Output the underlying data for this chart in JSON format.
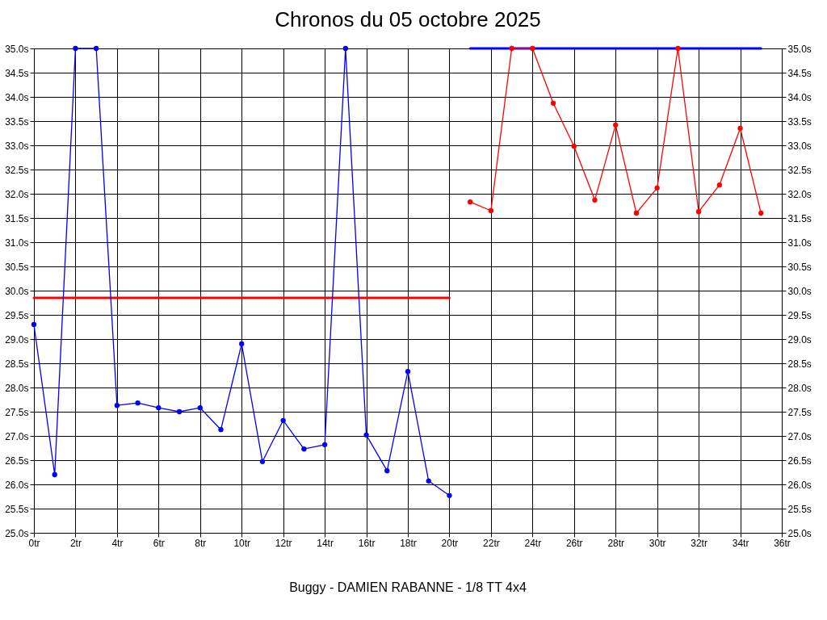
{
  "chart_data": {
    "type": "line",
    "title": "Chronos du 05 octobre 2025",
    "annotations": [
      "Buggy - DAMIEN RABANNE - 1/8 TT 4x4"
    ],
    "xlim": [
      0,
      36
    ],
    "xticks": [
      {
        "value": 0,
        "label": "0tr"
      },
      {
        "value": 2,
        "label": "2tr"
      },
      {
        "value": 4,
        "label": "4tr"
      },
      {
        "value": 6,
        "label": "6tr"
      },
      {
        "value": 8,
        "label": "8tr"
      },
      {
        "value": 10,
        "label": "10tr"
      },
      {
        "value": 12,
        "label": "12tr"
      },
      {
        "value": 14,
        "label": "14tr"
      },
      {
        "value": 16,
        "label": "16tr"
      },
      {
        "value": 18,
        "label": "18tr"
      },
      {
        "value": 20,
        "label": "20tr"
      },
      {
        "value": 22,
        "label": "22tr"
      },
      {
        "value": 24,
        "label": "24tr"
      },
      {
        "value": 26,
        "label": "26tr"
      },
      {
        "value": 28,
        "label": "28tr"
      },
      {
        "value": 30,
        "label": "30tr"
      },
      {
        "value": 32,
        "label": "32tr"
      },
      {
        "value": 34,
        "label": "34tr"
      },
      {
        "value": 36,
        "label": "36tr"
      }
    ],
    "ylim": [
      25,
      35
    ],
    "yticks": [
      {
        "value": 25,
        "label": "25.0s"
      },
      {
        "value": 25.5,
        "label": "25.5s"
      },
      {
        "value": 26,
        "label": "26.0s"
      },
      {
        "value": 26.5,
        "label": "26.5s"
      },
      {
        "value": 27,
        "label": "27.0s"
      },
      {
        "value": 27.5,
        "label": "27.5s"
      },
      {
        "value": 28,
        "label": "28.0s"
      },
      {
        "value": 28.5,
        "label": "28.5s"
      },
      {
        "value": 29,
        "label": "29.0s"
      },
      {
        "value": 29.5,
        "label": "29.5s"
      },
      {
        "value": 30,
        "label": "30.0s"
      },
      {
        "value": 30.5,
        "label": "30.5s"
      },
      {
        "value": 31,
        "label": "31.0s"
      },
      {
        "value": 31.5,
        "label": "31.5s"
      },
      {
        "value": 32,
        "label": "32.0s"
      },
      {
        "value": 32.5,
        "label": "32.5s"
      },
      {
        "value": 33,
        "label": "33.0s"
      },
      {
        "value": 33.5,
        "label": "33.5s"
      },
      {
        "value": 34,
        "label": "34.0s"
      },
      {
        "value": 34.5,
        "label": "34.5s"
      },
      {
        "value": 35,
        "label": "35.0s"
      }
    ],
    "y2lim": [
      25,
      35
    ],
    "y2ticks": [
      {
        "value": 25,
        "label": "25.0s"
      },
      {
        "value": 25.5,
        "label": "25.5s"
      },
      {
        "value": 26,
        "label": "26.0s"
      },
      {
        "value": 26.5,
        "label": "26.5s"
      },
      {
        "value": 27,
        "label": "27.0s"
      },
      {
        "value": 27.5,
        "label": "27.5s"
      },
      {
        "value": 28,
        "label": "28.0s"
      },
      {
        "value": 28.5,
        "label": "28.5s"
      },
      {
        "value": 29,
        "label": "29.0s"
      },
      {
        "value": 29.5,
        "label": "29.5s"
      },
      {
        "value": 30,
        "label": "30.0s"
      },
      {
        "value": 30.5,
        "label": "30.5s"
      },
      {
        "value": 31,
        "label": "31.0s"
      },
      {
        "value": 31.5,
        "label": "31.5s"
      },
      {
        "value": 32,
        "label": "32.0s"
      },
      {
        "value": 32.5,
        "label": "32.5s"
      },
      {
        "value": 33,
        "label": "33.0s"
      },
      {
        "value": 33.5,
        "label": "33.5s"
      },
      {
        "value": 34,
        "label": "34.0s"
      },
      {
        "value": 34.5,
        "label": "34.5s"
      },
      {
        "value": 35,
        "label": "35.0s"
      }
    ],
    "grid": true,
    "marker": "circle",
    "line_style": "solid",
    "series": [
      {
        "color": "#ff0000",
        "marker": "none",
        "x": [
          0,
          20
        ],
        "values": [
          29.85,
          29.85
        ]
      },
      {
        "color": "#0000ff",
        "marker": "none",
        "x": [
          21,
          35
        ],
        "values": [
          35.0,
          35.0
        ]
      },
      {
        "color": "#0000ff",
        "x": [
          0,
          1,
          2,
          3,
          4,
          5,
          6,
          7,
          8,
          9,
          10,
          11,
          12,
          13,
          14,
          15,
          16,
          17,
          18,
          19,
          20
        ],
        "values": [
          29.3,
          26.2,
          35.0,
          35.0,
          27.63,
          27.68,
          27.58,
          27.5,
          27.58,
          27.13,
          28.9,
          26.47,
          27.32,
          26.73,
          26.82,
          35.0,
          27.02,
          26.28,
          28.33,
          26.07,
          25.77
        ]
      },
      {
        "color": "#ff0000",
        "x": [
          21,
          22,
          23,
          24,
          25,
          26,
          27,
          28,
          29,
          30,
          31,
          32,
          33,
          34,
          35
        ],
        "values": [
          31.83,
          31.65,
          35.0,
          35.0,
          33.87,
          32.98,
          31.87,
          33.42,
          31.6,
          32.12,
          35.0,
          31.63,
          32.18,
          33.35,
          31.6
        ]
      }
    ]
  }
}
